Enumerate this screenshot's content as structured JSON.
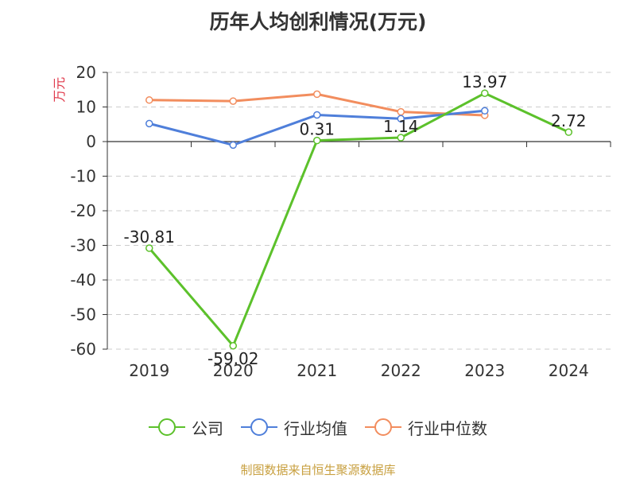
{
  "chart_data": {
    "type": "line",
    "title": "历年人均创利情况(万元)",
    "ylabel": "万元",
    "xlabel": "",
    "categories": [
      "2019",
      "2020",
      "2021",
      "2022",
      "2023",
      "2024"
    ],
    "ylim": [
      -60,
      20
    ],
    "yticks": [
      "20",
      "10",
      "0",
      "-10",
      "-20",
      "-30",
      "-40",
      "-50",
      "-60"
    ],
    "grid": true,
    "legend_position": "bottom",
    "series": [
      {
        "name": "公司",
        "color": "#5cc12b",
        "values": [
          -30.81,
          -59.02,
          0.31,
          1.14,
          13.97,
          2.72
        ],
        "labels": [
          "-30.81",
          "-59.02",
          "0.31",
          "1.14",
          "13.97",
          "2.72"
        ]
      },
      {
        "name": "行业均值",
        "color": "#4f7fda",
        "values": [
          5.2,
          -1.0,
          7.7,
          6.6,
          8.9,
          null
        ],
        "labels": []
      },
      {
        "name": "行业中位数",
        "color": "#f28d5e",
        "values": [
          12.0,
          11.7,
          13.7,
          8.6,
          7.6,
          null
        ],
        "labels": []
      }
    ]
  },
  "source_text": "制图数据来自恒生聚源数据库",
  "colors": {
    "title": "#333333",
    "axis_label": "#e0394b",
    "source": "#c8a040",
    "grid": "#cccccc",
    "axis": "#333333"
  }
}
